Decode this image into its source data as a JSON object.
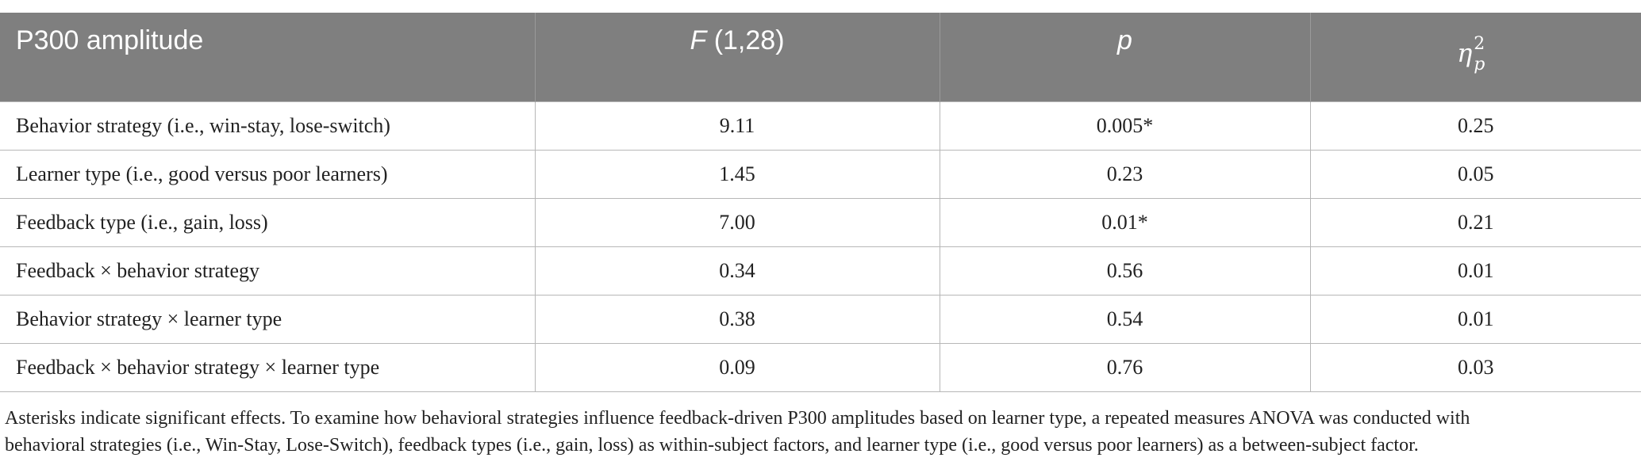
{
  "table": {
    "headers": {
      "col0": "P300 amplitude",
      "col1_italic": "F",
      "col1_rest": " (1,28)",
      "col2": "p",
      "col3_base": "η",
      "col3_sup": "2",
      "col3_sub": "p"
    },
    "rows": [
      {
        "effect": "Behavior strategy (i.e., win-stay, lose-switch)",
        "f": "9.11",
        "p": "0.005*",
        "eta": "0.25"
      },
      {
        "effect": "Learner type (i.e., good versus poor learners)",
        "f": "1.45",
        "p": "0.23",
        "eta": "0.05"
      },
      {
        "effect": "Feedback type (i.e., gain, loss)",
        "f": "7.00",
        "p": "0.01*",
        "eta": "0.21"
      },
      {
        "effect": "Feedback × behavior strategy",
        "f": "0.34",
        "p": "0.56",
        "eta": "0.01"
      },
      {
        "effect": "Behavior strategy × learner type",
        "f": "0.38",
        "p": "0.54",
        "eta": "0.01"
      },
      {
        "effect": "Feedback × behavior strategy × learner type",
        "f": "0.09",
        "p": "0.76",
        "eta": "0.03"
      }
    ]
  },
  "footnote": {
    "line1": "Asterisks indicate significant effects. To examine how behavioral strategies influence feedback-driven P300 amplitudes based on learner type, a repeated measures ANOVA was conducted with",
    "line2": "behavioral strategies (i.e., Win-Stay, Lose-Switch), feedback types (i.e., gain, loss) as within-subject factors, and learner type (i.e., good versus poor learners) as a between-subject factor."
  },
  "colors": {
    "header_bg": "#7f7f7f",
    "header_text": "#ffffff",
    "grid_line": "#b7b7b7"
  }
}
